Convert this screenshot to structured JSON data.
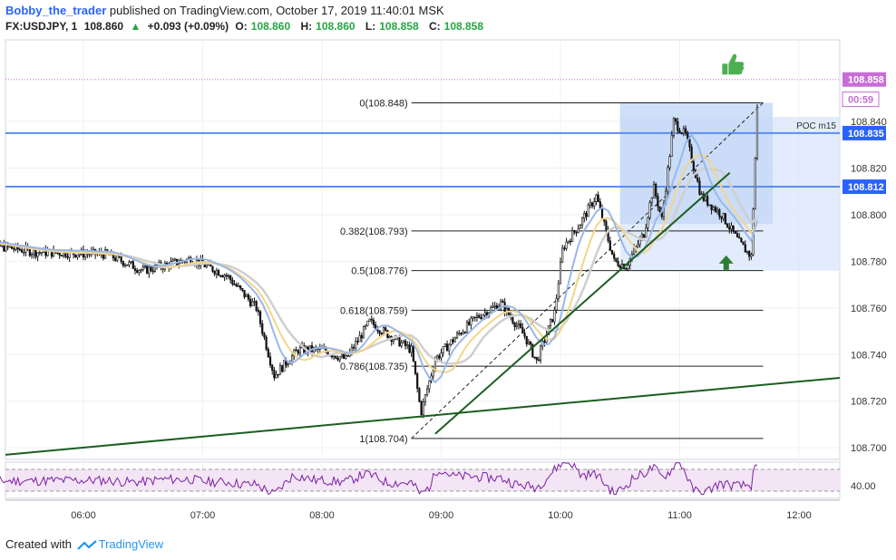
{
  "header": {
    "author": "Bobby_the_trader",
    "published": "published on TradingView.com, October 17, 2019 11:40:01 MSK",
    "symbol": "FX:USDJPY, 1",
    "last": "108.860",
    "change": "+0.093 (+0.09%)",
    "ohlc": {
      "o_label": "O:",
      "o": "108.860",
      "h_label": "H:",
      "h": "108.860",
      "l_label": "L:",
      "l": "108.858",
      "c_label": "C:",
      "c": "108.858"
    }
  },
  "footer": {
    "created_with": "Created with",
    "brand": "TradingView"
  },
  "colors": {
    "price_tag": "#c86dd7",
    "level_line": "#5b8def",
    "level_tag": "#2962ff",
    "trend_line": "#1b5e20",
    "fib_line": "#000000",
    "box_fill": "#dbe7fb",
    "box_inner": "#c6d9f7",
    "ema_blue": "#9ab7ea",
    "ema_gold": "#f4d58a",
    "ema_grey": "#cfcfcf",
    "rsi_fill": "#f3e5f5",
    "rsi_line": "#7b1fa2",
    "thumb": "#4caf50",
    "arrow_up": "#2e7d32"
  },
  "chart_data": {
    "type": "candlestick",
    "x_ticks": [
      "06:00",
      "07:00",
      "08:00",
      "09:00",
      "10:00",
      "11:00",
      "12:00"
    ],
    "y_ticks": [
      "108.700",
      "108.720",
      "108.740",
      "108.760",
      "108.780",
      "108.800",
      "108.820",
      "108.840"
    ],
    "ylim": [
      108.695,
      108.875
    ],
    "price_tags": [
      {
        "label": "108.858",
        "value": 108.858,
        "style": "current"
      },
      {
        "label": "00:59",
        "value": 108.8495,
        "style": "timer"
      },
      {
        "label": "108.835",
        "value": 108.835,
        "style": "level"
      },
      {
        "label": "108.812",
        "value": 108.812,
        "style": "level"
      }
    ],
    "horizontal_levels": [
      108.835,
      108.812
    ],
    "poc_label": "POC m15",
    "fibonacci": [
      {
        "label": "0(108.848)",
        "value": 108.848
      },
      {
        "label": "0.382(108.793)",
        "value": 108.793
      },
      {
        "label": "0.5(108.776)",
        "value": 108.776
      },
      {
        "label": "0.618(108.759)",
        "value": 108.759
      },
      {
        "label": "0.786(108.735)",
        "value": 108.735
      },
      {
        "label": "1(108.704)",
        "value": 108.704
      }
    ],
    "rsi": {
      "label": "40.00",
      "value": 40
    }
  }
}
